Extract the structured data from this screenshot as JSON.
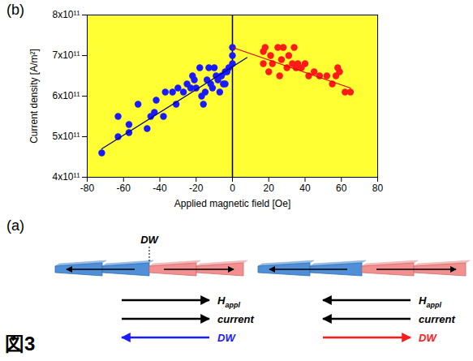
{
  "chart_data": {
    "type": "scatter",
    "panel_label": "(b)",
    "xlabel": "Applied magnetic field [Oe]",
    "ylabel": "Current density [A/m²]",
    "xlim": [
      -80,
      80
    ],
    "xticks": [
      -80,
      -60,
      -40,
      -20,
      0,
      20,
      40,
      60,
      80
    ],
    "ylim": [
      400000000000.0,
      800000000000.0
    ],
    "yticks": [
      {
        "value": 400000000000.0,
        "label": "4x10¹¹"
      },
      {
        "value": 500000000000.0,
        "label": "5x10¹¹"
      },
      {
        "value": 600000000000.0,
        "label": "6x10¹¹"
      },
      {
        "value": 700000000000.0,
        "label": "7x10¹¹"
      },
      {
        "value": 800000000000.0,
        "label": "8x10¹¹"
      }
    ],
    "grid": false,
    "vlines": [
      0
    ],
    "series": [
      {
        "type": "scatter",
        "marker": "circle",
        "color": "#1a1aff",
        "x": [
          -72,
          -63,
          -63,
          -57,
          -57,
          -52,
          -47,
          -45,
          -43,
          -42,
          -38,
          -37,
          -33,
          -31,
          -30,
          -27,
          -25,
          -23,
          -22,
          -21,
          -20,
          -18,
          -17,
          -16,
          -15,
          -14,
          -13,
          -12,
          -11,
          -10,
          -9,
          -8,
          -7,
          -6,
          -5,
          -4,
          -4,
          -3,
          -2,
          0,
          0,
          0
        ],
        "values": [
          460000000000.0,
          500000000000.0,
          550000000000.0,
          510000000000.0,
          530000000000.0,
          580000000000.0,
          520000000000.0,
          550000000000.0,
          560000000000.0,
          590000000000.0,
          550000000000.0,
          610000000000.0,
          610000000000.0,
          580000000000.0,
          620000000000.0,
          610000000000.0,
          630000000000.0,
          620000000000.0,
          650000000000.0,
          640000000000.0,
          620000000000.0,
          670000000000.0,
          600000000000.0,
          580000000000.0,
          610000000000.0,
          640000000000.0,
          670000000000.0,
          630000000000.0,
          620000000000.0,
          670000000000.0,
          650000000000.0,
          640000000000.0,
          610000000000.0,
          650000000000.0,
          630000000000.0,
          660000000000.0,
          630000000000.0,
          660000000000.0,
          670000000000.0,
          680000000000.0,
          700000000000.0,
          720000000000.0
        ]
      },
      {
        "type": "scatter",
        "marker": "circle",
        "color": "#ff1a1a",
        "x": [
          17,
          17,
          18,
          20,
          21,
          22,
          25,
          26,
          27,
          28,
          30,
          31,
          33,
          34,
          35,
          36,
          38,
          40,
          42,
          45,
          48,
          52,
          55,
          57,
          58,
          59,
          62,
          65
        ],
        "values": [
          710000000000.0,
          680000000000.0,
          720000000000.0,
          660000000000.0,
          700000000000.0,
          680000000000.0,
          720000000000.0,
          650000000000.0,
          690000000000.0,
          720000000000.0,
          670000000000.0,
          700000000000.0,
          680000000000.0,
          720000000000.0,
          670000000000.0,
          680000000000.0,
          670000000000.0,
          680000000000.0,
          650000000000.0,
          660000000000.0,
          650000000000.0,
          650000000000.0,
          630000000000.0,
          650000000000.0,
          670000000000.0,
          660000000000.0,
          610000000000.0,
          610000000000.0
        ]
      },
      {
        "type": "line",
        "line_style": "solid",
        "color": "#000080",
        "x": [
          -72,
          8
        ],
        "values": [
          470000000000.0,
          695000000000.0
        ]
      },
      {
        "type": "line",
        "line_style": "solid",
        "color": "#e00000",
        "x": [
          0,
          65
        ],
        "values": [
          720000000000.0,
          620000000000.0
        ]
      }
    ]
  },
  "diagram": {
    "panel_label": "(a)",
    "figure_label": "図3",
    "wall_label": "DW",
    "cases": [
      {
        "wall_marked": true,
        "rows": [
          {
            "text": "H",
            "sub": "appl",
            "direction": "right",
            "color": "#000000"
          },
          {
            "text": "current",
            "direction": "right",
            "color": "#000000"
          },
          {
            "text": "DW",
            "direction": "left",
            "color": "#1a1aff"
          }
        ]
      },
      {
        "wall_marked": false,
        "rows": [
          {
            "text": "H",
            "sub": "appl",
            "direction": "left",
            "color": "#000000"
          },
          {
            "text": "current",
            "direction": "left",
            "color": "#000000"
          },
          {
            "text": "DW",
            "direction": "right",
            "color": "#ff1a1a"
          }
        ]
      }
    ]
  }
}
